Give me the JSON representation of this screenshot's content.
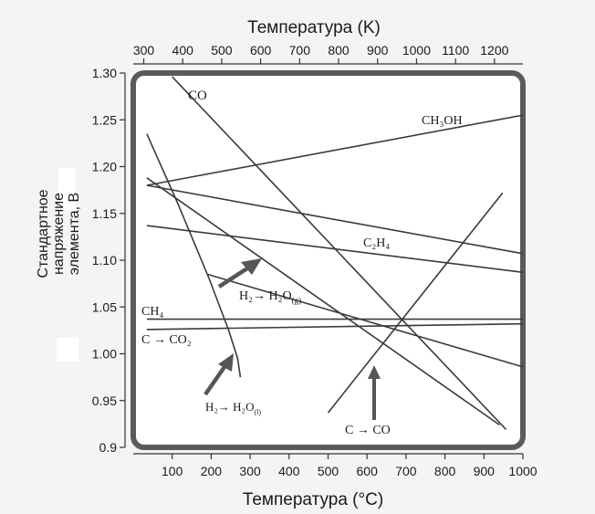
{
  "chart_data": {
    "type": "line",
    "title": "",
    "xlabel": "Температура (°C)",
    "top_xlabel": "Температура (K)",
    "ylabel_lines": [
      "Стандартное",
      "напряжение",
      "элемента, В"
    ],
    "xlim": [
      0,
      1000
    ],
    "ylim": [
      0.9,
      1.3
    ],
    "x_ticks": [
      100,
      200,
      300,
      400,
      500,
      600,
      700,
      800,
      900,
      1000
    ],
    "y_ticks": [
      "0.9",
      "0.95",
      "1.00",
      "1.05",
      "1.10",
      "1.15",
      "1.20",
      "1.25",
      "1.30"
    ],
    "top_ticks": [
      300,
      400,
      500,
      600,
      700,
      800,
      900,
      1000,
      1100,
      1200
    ],
    "grid": false,
    "series": [
      {
        "name": "CO",
        "x": [
          100,
          957
        ],
        "y": [
          1.296,
          0.919
        ]
      },
      {
        "name": "CH₃OH",
        "x": [
          35,
          1000
        ],
        "y": [
          1.18,
          1.255
        ]
      },
      {
        "name": "C₂H₄",
        "x": [
          35,
          1000
        ],
        "y": [
          1.137,
          1.087
        ]
      },
      {
        "name": "H₂ → H₂O(g)",
        "x": [
          35,
          940
        ],
        "y": [
          1.188,
          0.924
        ]
      },
      {
        "name": "CH₄",
        "x": [
          35,
          1000
        ],
        "y": [
          1.037,
          1.037
        ]
      },
      {
        "name": "C → CO₂",
        "x": [
          35,
          1000
        ],
        "y": [
          1.026,
          1.032
        ]
      },
      {
        "name": "C → CO",
        "x": [
          500,
          948
        ],
        "y": [
          0.937,
          1.172
        ]
      },
      {
        "name": "H₂ → H₂O(l)",
        "x": [
          35,
          115,
          195,
          245,
          268,
          275
        ],
        "y": [
          1.235,
          1.16,
          1.08,
          1.025,
          0.995,
          0.975
        ]
      },
      {
        "name": "",
        "x": [
          35,
          1000
        ],
        "y": [
          1.18,
          1.107
        ]
      },
      {
        "name": "",
        "x": [
          190,
          1000
        ],
        "y": [
          1.085,
          0.986
        ]
      }
    ],
    "labels": {
      "co": "CO",
      "ch3oh": "CH₃OH",
      "c2h4": "C₂H₄",
      "h2_gas_main": "H₂→ H₂O",
      "h2_gas_sub": "(g)",
      "ch4": "CH₄",
      "c_co2": "C → CO₂",
      "h2_liq_main": "H₂→ H₂O",
      "h2_liq_sub": "(l)",
      "c_co": "C → CO"
    }
  }
}
